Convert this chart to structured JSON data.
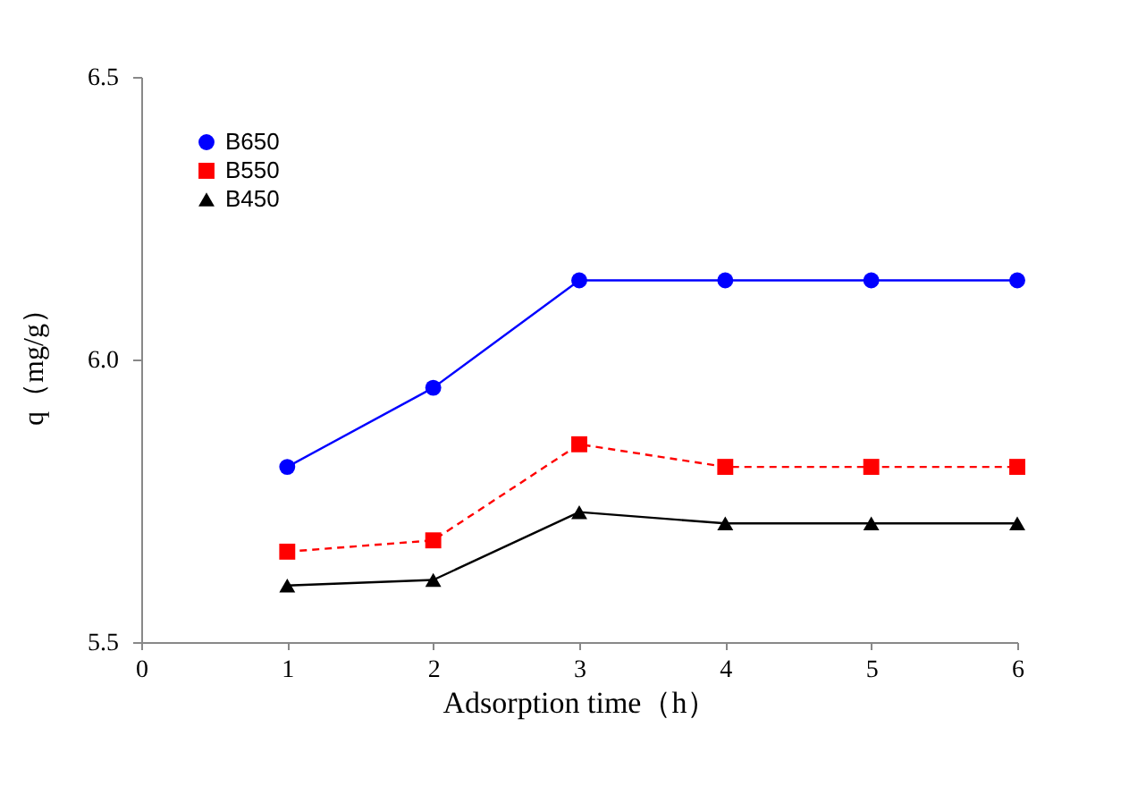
{
  "chart_data": {
    "type": "line",
    "xlabel": "Adsorption time（h）",
    "ylabel": "q（mg/g）",
    "x": [
      1,
      2,
      3,
      4,
      5,
      6
    ],
    "series": [
      {
        "name": "B650",
        "color": "#0000ff",
        "marker": "circle",
        "line_style": "solid",
        "values": [
          5.81,
          5.95,
          6.14,
          6.14,
          6.14,
          6.14
        ]
      },
      {
        "name": "B550",
        "color": "#ff0000",
        "marker": "square",
        "line_style": "dashed",
        "values": [
          5.66,
          5.68,
          5.85,
          5.81,
          5.81,
          5.81
        ]
      },
      {
        "name": "B450",
        "color": "#000000",
        "marker": "triangle",
        "line_style": "solid",
        "values": [
          5.6,
          5.61,
          5.73,
          5.71,
          5.71,
          5.71
        ]
      }
    ],
    "xlim": [
      0,
      6
    ],
    "xticks": [
      0,
      1,
      2,
      3,
      4,
      5,
      6
    ],
    "ylim": [
      5.5,
      6.5
    ],
    "yticks": [
      5.5,
      {
        "value": 6,
        "label": "6.0"
      },
      6.5
    ],
    "grid": false,
    "legend": "top left"
  }
}
